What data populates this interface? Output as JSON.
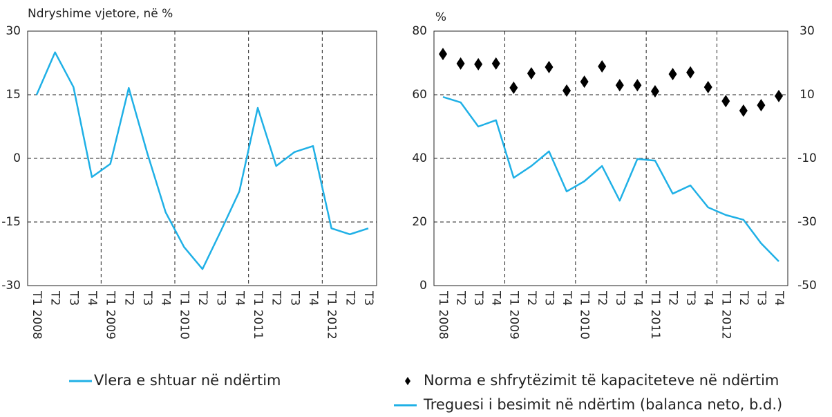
{
  "chart_data": [
    {
      "type": "line",
      "y_label": "Ndryshime vjetore, në %",
      "categories": [
        "T1 2008",
        "T2",
        "T3",
        "T4",
        "T1 2009",
        "T2",
        "T3",
        "T4",
        "T1 2010",
        "T2",
        "T3",
        "T4",
        "T1 2011",
        "T2",
        "T3",
        "T4",
        "T1 2012",
        "T2",
        "T3"
      ],
      "series": [
        {
          "name": "Vlera e shtuar në ndërtim",
          "color": "#1fb0e6",
          "values": [
            15,
            25,
            16.8,
            -4.4,
            -1.3,
            16.6,
            1.3,
            -12.7,
            -20.9,
            -26.1,
            -17.1,
            -7.8,
            11.9,
            -1.8,
            1.5,
            2.9,
            -16.5,
            -17.9,
            -16.5
          ]
        }
      ],
      "ylim": [
        -30,
        30
      ],
      "yticks": [
        -30,
        -15,
        0,
        15,
        30
      ],
      "grid": true
    },
    {
      "type": "line",
      "y_label": "%",
      "categories": [
        "T1 2008",
        "T2",
        "T3",
        "T4",
        "T1 2009",
        "T2",
        "T3",
        "T4",
        "T1 2010",
        "T2",
        "T3",
        "T4",
        "T1 2011",
        "T2",
        "T3",
        "T4",
        "T1 2012",
        "T2",
        "T3",
        "T4"
      ],
      "series": [
        {
          "name": "Norma e shfrytëzimit të kapaciteteve në ndërtim",
          "color": "#000000",
          "type": "scatter",
          "values": [
            72.8,
            69.8,
            69.6,
            69.8,
            62.2,
            66.7,
            68.7,
            61.3,
            64.1,
            68.9,
            63.0,
            63.0,
            61.1,
            66.5,
            67.0,
            62.4,
            58.0,
            55.0,
            56.7,
            59.6
          ]
        },
        {
          "name": "Treguesi i besimit në ndërtim (balanca neto, b.d.)",
          "color": "#1fb0e6",
          "axis": "y2",
          "values": [
            9.3,
            7.6,
            0,
            2,
            -16.1,
            -12.4,
            -7.8,
            -20.4,
            -17.2,
            -12.4,
            -23.3,
            -10.2,
            -10.7,
            -21.1,
            -18.5,
            -25.4,
            -27.8,
            -29.3,
            -36.7,
            -42.4
          ]
        }
      ],
      "ylim": [
        0,
        80
      ],
      "yticks": [
        0,
        20,
        40,
        60,
        80
      ],
      "y2lim": [
        -50,
        30
      ],
      "y2ticks": [
        -50,
        -30,
        -10,
        10,
        30
      ],
      "grid": true
    }
  ]
}
